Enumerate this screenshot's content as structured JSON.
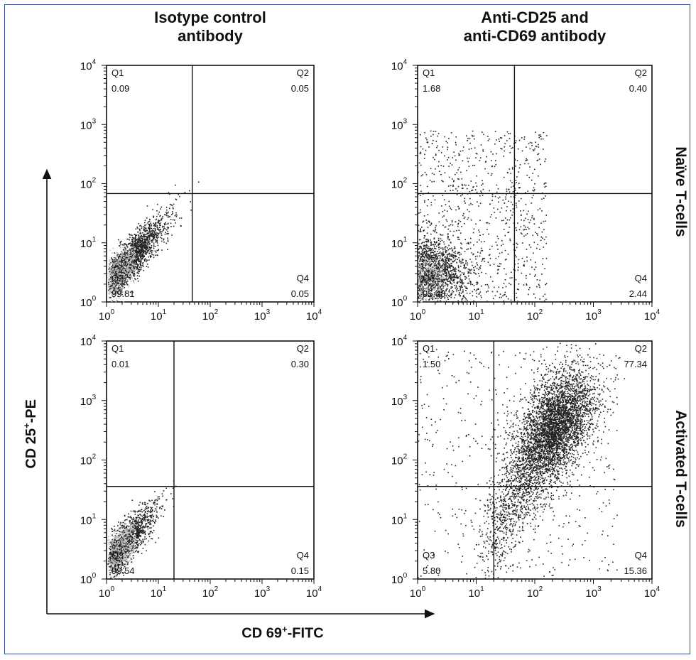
{
  "columns": [
    {
      "title_line1": "Isotype control",
      "title_line2": "antibody"
    },
    {
      "title_line1": "Anti-CD25 and",
      "title_line2": "anti-CD69 antibody"
    }
  ],
  "rows": [
    {
      "label": "Naïve T-cells"
    },
    {
      "label": "Activated T-cells"
    }
  ],
  "axes": {
    "y_label_main": "CD 25",
    "y_label_sup": "+",
    "y_label_tail": "-PE",
    "x_label_main": "CD 69",
    "x_label_sup": "+",
    "x_label_tail": "-FITC"
  },
  "colors": {
    "dots": "#222222",
    "dense": "#bdbdbd",
    "frame": "#2e4c9e",
    "axis": "#111111"
  },
  "chart_data": [
    {
      "type": "scatter",
      "panel": "isotype-naive",
      "xscale": "log",
      "yscale": "log",
      "xlim": [
        1,
        10000
      ],
      "ylim": [
        1,
        10000
      ],
      "x_ticks": [
        "10^0",
        "10^1",
        "10^2",
        "10^3",
        "10^4"
      ],
      "y_ticks": [
        "10^0",
        "10^1",
        "10^2",
        "10^3",
        "10^4"
      ],
      "gate_x": 45,
      "gate_y": 68,
      "quadrants": {
        "Q1": "0.09",
        "Q2": "0.05",
        "Q3": "99.81",
        "Q4": "0.05"
      }
    },
    {
      "type": "scatter",
      "panel": "anti-naive",
      "xscale": "log",
      "yscale": "log",
      "xlim": [
        1,
        10000
      ],
      "ylim": [
        1,
        10000
      ],
      "x_ticks": [
        "10^0",
        "10^1",
        "10^2",
        "10^3",
        "10^4"
      ],
      "y_ticks": [
        "10^0",
        "10^1",
        "10^2",
        "10^3",
        "10^4"
      ],
      "gate_x": 45,
      "gate_y": 68,
      "quadrants": {
        "Q1": "1.68",
        "Q2": "0.40",
        "Q3": "95.48",
        "Q4": "2.44"
      }
    },
    {
      "type": "scatter",
      "panel": "isotype-activated",
      "xscale": "log",
      "yscale": "log",
      "xlim": [
        1,
        10000
      ],
      "ylim": [
        1,
        10000
      ],
      "x_ticks": [
        "10^0",
        "10^1",
        "10^2",
        "10^3",
        "10^4"
      ],
      "y_ticks": [
        "10^0",
        "10^1",
        "10^2",
        "10^3",
        "10^4"
      ],
      "gate_x": 20,
      "gate_y": 36,
      "quadrants": {
        "Q1": "0.01",
        "Q2": "0.30",
        "Q3": "99.54",
        "Q4": "0.15"
      }
    },
    {
      "type": "scatter",
      "panel": "anti-activated",
      "xscale": "log",
      "yscale": "log",
      "xlim": [
        1,
        10000
      ],
      "ylim": [
        1,
        10000
      ],
      "x_ticks": [
        "10^0",
        "10^1",
        "10^2",
        "10^3",
        "10^4"
      ],
      "y_ticks": [
        "10^0",
        "10^1",
        "10^2",
        "10^3",
        "10^4"
      ],
      "gate_x": 20,
      "gate_y": 36,
      "quadrants": {
        "Q1": "1.50",
        "Q2": "77.34",
        "Q3": "5.80",
        "Q4": "15.36"
      }
    }
  ]
}
